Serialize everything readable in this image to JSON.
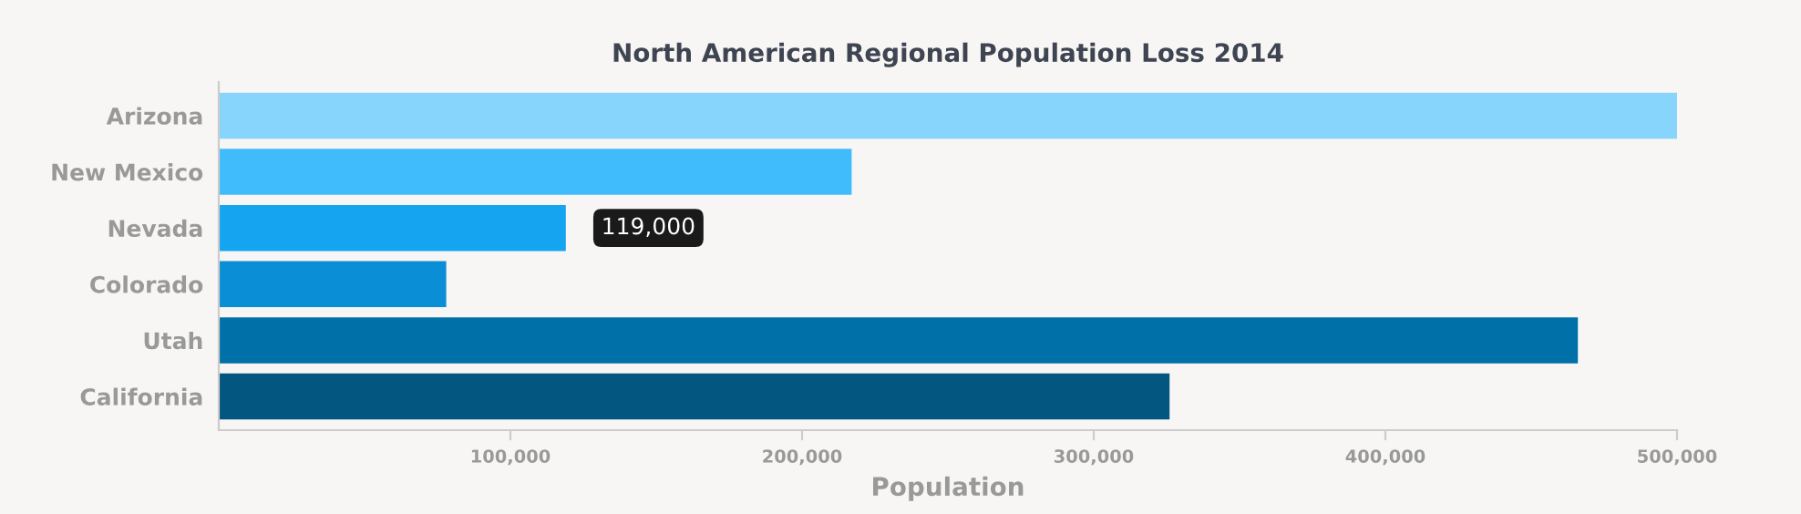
{
  "chart_data": {
    "type": "bar",
    "orientation": "horizontal",
    "title": "North American Regional Population Loss 2014",
    "xlabel": "Population",
    "categories": [
      "Arizona",
      "New Mexico",
      "Nevada",
      "Colorado",
      "Utah",
      "California"
    ],
    "values": [
      500000,
      217000,
      119000,
      78000,
      466000,
      326000
    ],
    "colors": [
      "#87d4fc",
      "#40bcfc",
      "#14a4f0",
      "#0a8ed6",
      "#0071a8",
      "#02567f"
    ],
    "xlim": [
      0,
      500000
    ],
    "xticks": [
      {
        "value": 100000,
        "label": "100,000"
      },
      {
        "value": 200000,
        "label": "200,000"
      },
      {
        "value": 300000,
        "label": "300,000"
      },
      {
        "value": 400000,
        "label": "400,000"
      },
      {
        "value": 500000,
        "label": "500,000"
      }
    ],
    "annotations": [
      {
        "text": "119,000",
        "x": 119000,
        "y": "Nevada"
      }
    ],
    "grid": false
  }
}
